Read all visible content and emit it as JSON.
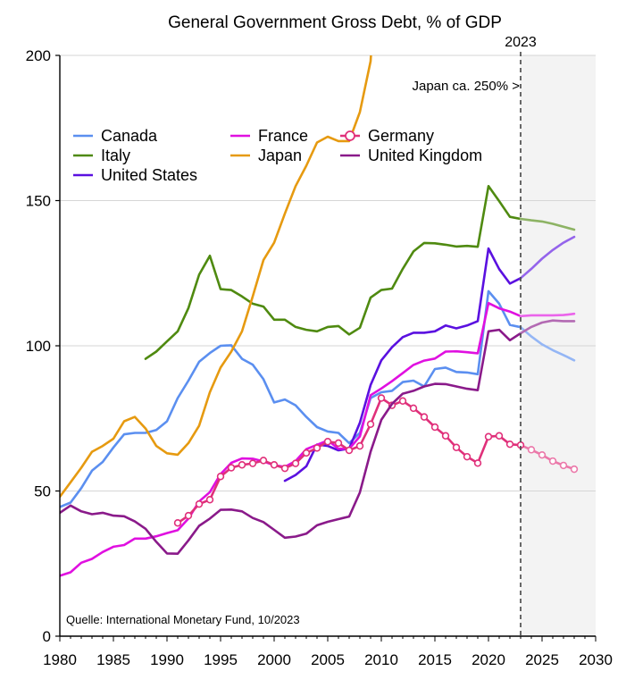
{
  "chart_data": {
    "type": "line",
    "title": "General Government Gross Debt, % of GDP",
    "xlabel": "",
    "ylabel": "",
    "xlim": [
      1980,
      2030
    ],
    "ylim": [
      0,
      200
    ],
    "xticks": [
      1980,
      1985,
      1990,
      1995,
      2000,
      2005,
      2010,
      2015,
      2020,
      2025,
      2030
    ],
    "yticks": [
      0,
      50,
      100,
      150,
      200
    ],
    "grid": "horizontal",
    "forecast_start": 2023,
    "forecast_label": "2023",
    "annotations": {
      "japan_note": "Japan ca. 250% >",
      "source": "Quelle: International Monetary Fund, 10/2023"
    },
    "legend_placement": "top-left",
    "series": [
      {
        "name": "Canada",
        "color": "#5b8ff0",
        "points": [
          [
            1980,
            44.5
          ],
          [
            1981,
            46
          ],
          [
            1982,
            51
          ],
          [
            1983,
            57
          ],
          [
            1984,
            60
          ],
          [
            1985,
            65
          ],
          [
            1986,
            69.5
          ],
          [
            1987,
            70
          ],
          [
            1988,
            70
          ],
          [
            1989,
            71
          ],
          [
            1990,
            74
          ],
          [
            1991,
            82
          ],
          [
            1992,
            88
          ],
          [
            1993,
            94.5
          ],
          [
            1994,
            97.5
          ],
          [
            1995,
            100
          ],
          [
            1996,
            100.2
          ],
          [
            1997,
            95.5
          ],
          [
            1998,
            93.5
          ],
          [
            1999,
            88.5
          ],
          [
            2000,
            80.5
          ],
          [
            2001,
            81.5
          ],
          [
            2002,
            79.5
          ],
          [
            2003,
            75.5
          ],
          [
            2004,
            72
          ],
          [
            2005,
            70.5
          ],
          [
            2006,
            70
          ],
          [
            2007,
            66.5
          ],
          [
            2008,
            70
          ],
          [
            2009,
            82
          ],
          [
            2010,
            84
          ],
          [
            2011,
            84.5
          ],
          [
            2012,
            87.5
          ],
          [
            2013,
            88
          ],
          [
            2014,
            86
          ],
          [
            2015,
            92
          ],
          [
            2016,
            92.5
          ],
          [
            2017,
            91
          ],
          [
            2018,
            90.8
          ],
          [
            2019,
            90.2
          ],
          [
            2020,
            118.8
          ],
          [
            2021,
            114.5
          ],
          [
            2022,
            107.2
          ],
          [
            2023,
            106.4
          ],
          [
            2024,
            103.2
          ],
          [
            2025,
            100.5
          ],
          [
            2026,
            98.5
          ],
          [
            2027,
            96.8
          ],
          [
            2028,
            95
          ]
        ]
      },
      {
        "name": "Italy",
        "color": "#4f8a10",
        "points": [
          [
            1988,
            95.5
          ],
          [
            1989,
            98
          ],
          [
            1990,
            101.5
          ],
          [
            1991,
            105
          ],
          [
            1992,
            113
          ],
          [
            1993,
            124.5
          ],
          [
            1994,
            131
          ],
          [
            1995,
            119.5
          ],
          [
            1996,
            119.2
          ],
          [
            1997,
            117
          ],
          [
            1998,
            114.5
          ],
          [
            1999,
            113.5
          ],
          [
            2000,
            109
          ],
          [
            2001,
            109
          ],
          [
            2002,
            106.5
          ],
          [
            2003,
            105.5
          ],
          [
            2004,
            105
          ],
          [
            2005,
            106.5
          ],
          [
            2006,
            106.8
          ],
          [
            2007,
            103.9
          ],
          [
            2008,
            106.2
          ],
          [
            2009,
            116.6
          ],
          [
            2010,
            119.2
          ],
          [
            2011,
            119.7
          ],
          [
            2012,
            126.5
          ],
          [
            2013,
            132.5
          ],
          [
            2014,
            135.4
          ],
          [
            2015,
            135.3
          ],
          [
            2016,
            134.8
          ],
          [
            2017,
            134.2
          ],
          [
            2018,
            134.4
          ],
          [
            2019,
            134.1
          ],
          [
            2020,
            155
          ],
          [
            2021,
            149.8
          ],
          [
            2022,
            144.4
          ],
          [
            2023,
            143.7
          ],
          [
            2024,
            143.2
          ],
          [
            2025,
            142.8
          ],
          [
            2026,
            142
          ],
          [
            2027,
            141
          ],
          [
            2028,
            140
          ]
        ]
      },
      {
        "name": "United States",
        "color": "#5a10e0",
        "points": [
          [
            2001,
            53.5
          ],
          [
            2002,
            55.5
          ],
          [
            2003,
            58.5
          ],
          [
            2004,
            66
          ],
          [
            2005,
            65.5
          ],
          [
            2006,
            64
          ],
          [
            2007,
            64.6
          ],
          [
            2008,
            73.5
          ],
          [
            2009,
            86.5
          ],
          [
            2010,
            95
          ],
          [
            2011,
            99.5
          ],
          [
            2012,
            103
          ],
          [
            2013,
            104.5
          ],
          [
            2014,
            104.5
          ],
          [
            2015,
            105
          ],
          [
            2016,
            107
          ],
          [
            2017,
            106
          ],
          [
            2018,
            107
          ],
          [
            2019,
            108.5
          ],
          [
            2020,
            133.5
          ],
          [
            2021,
            126.4
          ],
          [
            2022,
            121.4
          ],
          [
            2023,
            123.3
          ],
          [
            2024,
            126.5
          ],
          [
            2025,
            130
          ],
          [
            2026,
            133
          ],
          [
            2027,
            135.5
          ],
          [
            2028,
            137.5
          ]
        ]
      },
      {
        "name": "France",
        "color": "#e010e0",
        "points": [
          [
            1980,
            20.8
          ],
          [
            1981,
            22
          ],
          [
            1982,
            25.3
          ],
          [
            1983,
            26.6
          ],
          [
            1984,
            29
          ],
          [
            1985,
            30.8
          ],
          [
            1986,
            31.4
          ],
          [
            1987,
            33.6
          ],
          [
            1988,
            33.6
          ],
          [
            1989,
            34.4
          ],
          [
            1990,
            35.5
          ],
          [
            1991,
            36.5
          ],
          [
            1992,
            40.5
          ],
          [
            1993,
            46.4
          ],
          [
            1994,
            49.6
          ],
          [
            1995,
            55.8
          ],
          [
            1996,
            59.7
          ],
          [
            1997,
            61.2
          ],
          [
            1998,
            61.1
          ],
          [
            1999,
            60.2
          ],
          [
            2000,
            58.9
          ],
          [
            2001,
            58.3
          ],
          [
            2002,
            60.3
          ],
          [
            2003,
            64.4
          ],
          [
            2004,
            65.9
          ],
          [
            2005,
            67.4
          ],
          [
            2006,
            64.6
          ],
          [
            2007,
            64.5
          ],
          [
            2008,
            68.8
          ],
          [
            2009,
            83
          ],
          [
            2010,
            85.3
          ],
          [
            2011,
            87.8
          ],
          [
            2012,
            90.6
          ],
          [
            2013,
            93.4
          ],
          [
            2014,
            94.9
          ],
          [
            2015,
            95.6
          ],
          [
            2016,
            98
          ],
          [
            2017,
            98.1
          ],
          [
            2018,
            97.8
          ],
          [
            2019,
            97.4
          ],
          [
            2020,
            114.7
          ],
          [
            2021,
            112.9
          ],
          [
            2022,
            111.8
          ],
          [
            2023,
            110.2
          ],
          [
            2024,
            110.5
          ],
          [
            2025,
            110.5
          ],
          [
            2026,
            110.5
          ],
          [
            2027,
            110.6
          ],
          [
            2028,
            111
          ]
        ]
      },
      {
        "name": "Japan",
        "color": "#e69a10",
        "points": [
          [
            1980,
            48
          ],
          [
            1981,
            53
          ],
          [
            1982,
            58
          ],
          [
            1983,
            63.5
          ],
          [
            1984,
            65.5
          ],
          [
            1985,
            68
          ],
          [
            1986,
            74
          ],
          [
            1987,
            75.5
          ],
          [
            1988,
            71.5
          ],
          [
            1989,
            65.5
          ],
          [
            1990,
            63
          ],
          [
            1991,
            62.5
          ],
          [
            1992,
            66.5
          ],
          [
            1993,
            72.5
          ],
          [
            1994,
            84
          ],
          [
            1995,
            92.5
          ],
          [
            1996,
            98
          ],
          [
            1997,
            105
          ],
          [
            1998,
            117
          ],
          [
            1999,
            129.5
          ],
          [
            2000,
            135.5
          ],
          [
            2001,
            145.5
          ],
          [
            2002,
            155
          ],
          [
            2003,
            162
          ],
          [
            2004,
            170
          ],
          [
            2005,
            172
          ],
          [
            2006,
            170.5
          ],
          [
            2007,
            170.5
          ],
          [
            2008,
            180.5
          ],
          [
            2009,
            198
          ],
          [
            2009.2,
            210
          ]
        ]
      },
      {
        "name": "Germany",
        "color": "#e0307a",
        "marker": "circle",
        "points": [
          [
            1991,
            39
          ],
          [
            1992,
            41.5
          ],
          [
            1993,
            45.5
          ],
          [
            1994,
            47
          ],
          [
            1995,
            55
          ],
          [
            1996,
            58
          ],
          [
            1997,
            59
          ],
          [
            1998,
            59.5
          ],
          [
            1999,
            60.5
          ],
          [
            2000,
            59
          ],
          [
            2001,
            57.8
          ],
          [
            2002,
            59.5
          ],
          [
            2003,
            63.1
          ],
          [
            2004,
            64.8
          ],
          [
            2005,
            67
          ],
          [
            2006,
            66.5
          ],
          [
            2007,
            64
          ],
          [
            2008,
            65.5
          ],
          [
            2009,
            73
          ],
          [
            2010,
            82
          ],
          [
            2011,
            79.5
          ],
          [
            2012,
            81
          ],
          [
            2013,
            78.5
          ],
          [
            2014,
            75.5
          ],
          [
            2015,
            72
          ],
          [
            2016,
            69
          ],
          [
            2017,
            65
          ],
          [
            2018,
            61.8
          ],
          [
            2019,
            59.6
          ],
          [
            2020,
            68.7
          ],
          [
            2021,
            69
          ],
          [
            2022,
            66.1
          ],
          [
            2023,
            65.8
          ],
          [
            2024,
            64.2
          ],
          [
            2025,
            62.4
          ],
          [
            2026,
            60.3
          ],
          [
            2027,
            58.8
          ],
          [
            2028,
            57.5
          ]
        ]
      },
      {
        "name": "United Kingdom",
        "color": "#8a1a8a",
        "points": [
          [
            1980,
            42.5
          ],
          [
            1981,
            45
          ],
          [
            1982,
            43
          ],
          [
            1983,
            42
          ],
          [
            1984,
            42.5
          ],
          [
            1985,
            41.5
          ],
          [
            1986,
            41.3
          ],
          [
            1987,
            39.5
          ],
          [
            1988,
            37
          ],
          [
            1989,
            32.5
          ],
          [
            1990,
            28.5
          ],
          [
            1991,
            28.4
          ],
          [
            1992,
            33
          ],
          [
            1993,
            38
          ],
          [
            1994,
            40.5
          ],
          [
            1995,
            43.5
          ],
          [
            1996,
            43.6
          ],
          [
            1997,
            43
          ],
          [
            1998,
            40.7
          ],
          [
            1999,
            39.3
          ],
          [
            2000,
            36.6
          ],
          [
            2001,
            33.9
          ],
          [
            2002,
            34.3
          ],
          [
            2003,
            35.3
          ],
          [
            2004,
            38.2
          ],
          [
            2005,
            39.4
          ],
          [
            2006,
            40.3
          ],
          [
            2007,
            41.2
          ],
          [
            2008,
            49.5
          ],
          [
            2009,
            63.5
          ],
          [
            2010,
            74.5
          ],
          [
            2011,
            80
          ],
          [
            2012,
            83.5
          ],
          [
            2013,
            84.5
          ],
          [
            2014,
            86
          ],
          [
            2015,
            86.9
          ],
          [
            2016,
            86.8
          ],
          [
            2017,
            86
          ],
          [
            2018,
            85.2
          ],
          [
            2019,
            84.7
          ],
          [
            2020,
            105
          ],
          [
            2021,
            105.5
          ],
          [
            2022,
            101.9
          ],
          [
            2023,
            104.3
          ],
          [
            2024,
            106.5
          ],
          [
            2025,
            108
          ],
          [
            2026,
            108.7
          ],
          [
            2027,
            108.5
          ],
          [
            2028,
            108.5
          ]
        ]
      }
    ],
    "legend_columns": [
      [
        "Canada",
        "Italy",
        "United States"
      ],
      [
        "France",
        "Japan"
      ],
      [
        "Germany",
        "United Kingdom"
      ]
    ]
  }
}
